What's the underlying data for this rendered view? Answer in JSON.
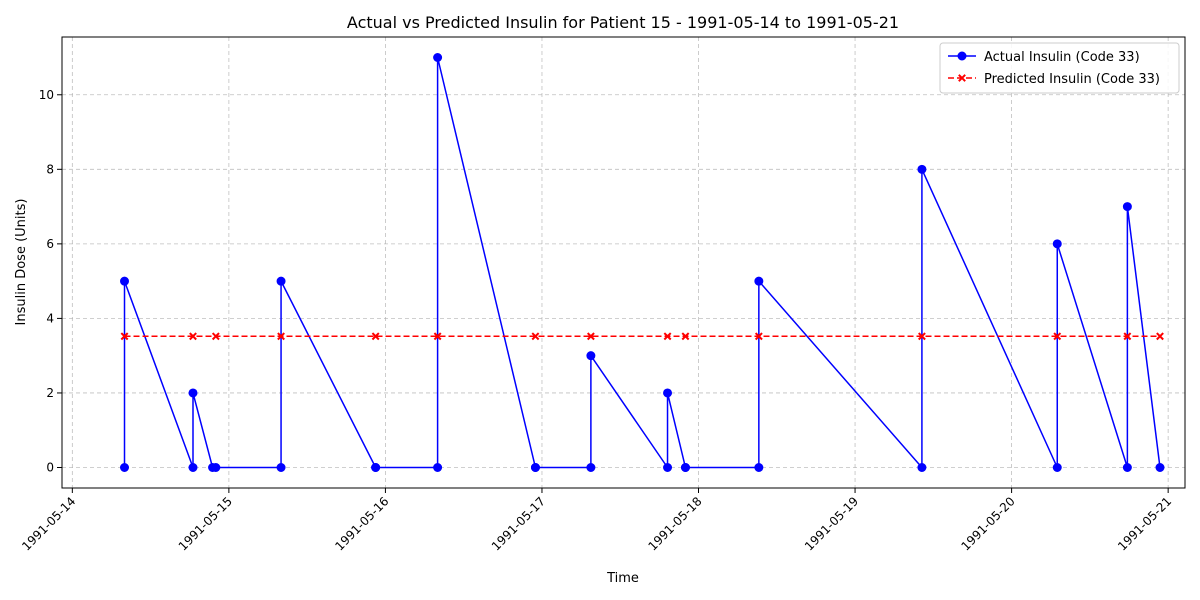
{
  "chart_data": {
    "type": "line",
    "title": "Actual vs Predicted Insulin for Patient 15 - 1991-05-14 to 1991-05-21",
    "xlabel": "Time",
    "ylabel": "Insulin Dose (Units)",
    "x_ticks": [
      "1991-05-14",
      "1991-05-15",
      "1991-05-16",
      "1991-05-17",
      "1991-05-18",
      "1991-05-19",
      "1991-05-20",
      "1991-05-21"
    ],
    "y_ticks": [
      0,
      2,
      4,
      6,
      8,
      10
    ],
    "xlim": [
      "1991-05-13T22:25",
      "1991-05-21T02:35"
    ],
    "ylim": [
      -0.55,
      11.55
    ],
    "grid": true,
    "legend_position": "top-right",
    "series": [
      {
        "name": "Actual Insulin (Code 33)",
        "color": "#0000ff",
        "line": "solid",
        "marker": "circle",
        "points": [
          {
            "x": "1991-05-14T08:00",
            "y": 0
          },
          {
            "x": "1991-05-14T08:00",
            "y": 5
          },
          {
            "x": "1991-05-14T18:30",
            "y": 0
          },
          {
            "x": "1991-05-14T18:30",
            "y": 2
          },
          {
            "x": "1991-05-14T21:30",
            "y": 0
          },
          {
            "x": "1991-05-14T22:00",
            "y": 0
          },
          {
            "x": "1991-05-15T08:00",
            "y": 0
          },
          {
            "x": "1991-05-15T08:00",
            "y": 5
          },
          {
            "x": "1991-05-15T22:30",
            "y": 0
          },
          {
            "x": "1991-05-15T22:30",
            "y": 0
          },
          {
            "x": "1991-05-16T08:00",
            "y": 0
          },
          {
            "x": "1991-05-16T08:00",
            "y": 11
          },
          {
            "x": "1991-05-16T23:00",
            "y": 0
          },
          {
            "x": "1991-05-16T23:00",
            "y": 0
          },
          {
            "x": "1991-05-17T07:30",
            "y": 0
          },
          {
            "x": "1991-05-17T07:30",
            "y": 3
          },
          {
            "x": "1991-05-17T19:15",
            "y": 0
          },
          {
            "x": "1991-05-17T19:15",
            "y": 2
          },
          {
            "x": "1991-05-17T22:00",
            "y": 0
          },
          {
            "x": "1991-05-17T22:00",
            "y": 0
          },
          {
            "x": "1991-05-18T09:15",
            "y": 0
          },
          {
            "x": "1991-05-18T09:15",
            "y": 5
          },
          {
            "x": "1991-05-19T10:15",
            "y": 0
          },
          {
            "x": "1991-05-19T10:15",
            "y": 8
          },
          {
            "x": "1991-05-20T07:00",
            "y": 0
          },
          {
            "x": "1991-05-20T07:00",
            "y": 6
          },
          {
            "x": "1991-05-20T17:45",
            "y": 0
          },
          {
            "x": "1991-05-20T17:45",
            "y": 7
          },
          {
            "x": "1991-05-20T22:45",
            "y": 0
          }
        ]
      },
      {
        "name": "Predicted Insulin (Code 33)",
        "color": "#ff0000",
        "line": "dashed",
        "marker": "x",
        "points": [
          {
            "x": "1991-05-14T08:00",
            "y": 3.52
          },
          {
            "x": "1991-05-14T18:30",
            "y": 3.52
          },
          {
            "x": "1991-05-14T22:00",
            "y": 3.52
          },
          {
            "x": "1991-05-15T08:00",
            "y": 3.52
          },
          {
            "x": "1991-05-15T22:30",
            "y": 3.52
          },
          {
            "x": "1991-05-16T08:00",
            "y": 3.52
          },
          {
            "x": "1991-05-16T23:00",
            "y": 3.52
          },
          {
            "x": "1991-05-17T07:30",
            "y": 3.52
          },
          {
            "x": "1991-05-17T19:15",
            "y": 3.52
          },
          {
            "x": "1991-05-17T22:00",
            "y": 3.52
          },
          {
            "x": "1991-05-18T09:15",
            "y": 3.52
          },
          {
            "x": "1991-05-19T10:15",
            "y": 3.52
          },
          {
            "x": "1991-05-20T07:00",
            "y": 3.52
          },
          {
            "x": "1991-05-20T17:45",
            "y": 3.52
          },
          {
            "x": "1991-05-20T22:45",
            "y": 3.52
          }
        ]
      }
    ]
  }
}
